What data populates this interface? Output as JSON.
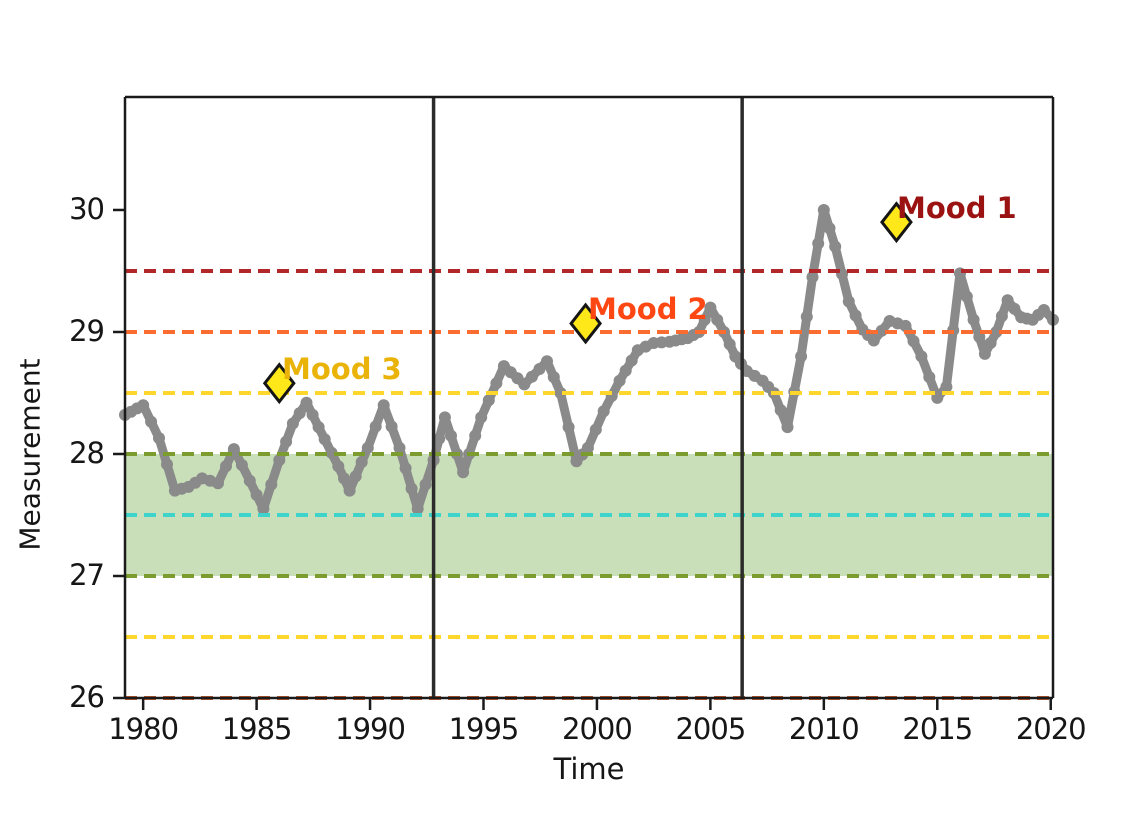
{
  "chart_data": {
    "type": "line",
    "title": "",
    "xlabel": "Time",
    "ylabel": "Measurement",
    "xlim": [
      1979.2,
      2020.1
    ],
    "ylim": [
      26,
      30.926
    ],
    "grid": false,
    "legend": null,
    "xticks": [
      1980,
      1985,
      1990,
      1995,
      2000,
      2005,
      2010,
      2015,
      2020
    ],
    "xtick_labels": [
      "1980",
      "1985",
      "1990",
      "1995",
      "2000",
      "2005",
      "2010",
      "2015",
      "2020"
    ],
    "yticks": [
      26,
      27,
      28,
      29,
      30
    ],
    "ytick_labels": [
      "26",
      "27",
      "28",
      "29",
      "30"
    ],
    "series": [
      {
        "name": "measurement",
        "color": "#8a8a8a",
        "marker": "o",
        "x": [
          1979.2,
          1980.0,
          1980.7,
          1981.4,
          1982.0,
          1982.6,
          1983.3,
          1984.0,
          1984.7,
          1985.3,
          1986.0,
          1986.6,
          1987.2,
          1988.0,
          1988.6,
          1989.1,
          1989.9,
          1990.6,
          1991.3,
          1992.1,
          1992.8,
          1993.3,
          1994.1,
          1994.9,
          1995.9,
          1996.8,
          1997.8,
          1998.4,
          1999.1,
          1999.6,
          2000.3,
          2001.0,
          2001.8,
          2002.5,
          2003.2,
          2004.0,
          2004.5,
          2005.0,
          2005.6,
          2006.1,
          2006.6,
          2007.3,
          2007.8,
          2008.4,
          2009.0,
          2009.5,
          2010.0,
          2010.5,
          2011.1,
          2011.7,
          2012.2,
          2012.9,
          2013.6,
          2014.3,
          2015.0,
          2015.4,
          2016.0,
          2016.6,
          2017.1,
          2017.6,
          2018.1,
          2018.7,
          2019.2,
          2019.7,
          2020.1
        ],
        "y": [
          28.32,
          28.4,
          28.13,
          27.7,
          27.73,
          27.8,
          27.76,
          28.04,
          27.78,
          27.55,
          27.95,
          28.25,
          28.42,
          28.12,
          27.9,
          27.7,
          28.05,
          28.4,
          28.05,
          27.55,
          27.95,
          28.3,
          27.85,
          28.3,
          28.72,
          28.57,
          28.76,
          28.5,
          27.94,
          28.05,
          28.35,
          28.6,
          28.85,
          28.91,
          28.92,
          28.95,
          29.0,
          29.2,
          29.0,
          28.8,
          28.68,
          28.6,
          28.5,
          28.22,
          28.8,
          29.45,
          30.0,
          29.7,
          29.25,
          29.02,
          28.93,
          29.09,
          29.05,
          28.8,
          28.46,
          28.55,
          29.48,
          29.1,
          28.82,
          29.0,
          29.26,
          29.12,
          29.1,
          29.18,
          29.1
        ]
      }
    ],
    "hlines": [
      {
        "y": 29.5,
        "color": "#b2272a"
      },
      {
        "y": 29.0,
        "color": "#fb6c30"
      },
      {
        "y": 28.5,
        "color": "#ffd62b"
      },
      {
        "y": 28.0,
        "color": "#7d9c30"
      },
      {
        "y": 27.5,
        "color": "#3ed4cc"
      },
      {
        "y": 27.0,
        "color": "#7d9c30"
      },
      {
        "y": 26.5,
        "color": "#ffd62b"
      },
      {
        "y": 26.0,
        "color": "#c05a30"
      }
    ],
    "band": {
      "y0": 27.0,
      "y1": 28.0,
      "color": "#c8dfb9"
    },
    "vlines": [
      {
        "x": 1992.8,
        "color": "#2b2b2b"
      },
      {
        "x": 2006.4,
        "color": "#2b2b2b"
      }
    ],
    "annotations": [
      {
        "label": "Mood 1",
        "x": 2013.2,
        "y": 29.9,
        "text_color": "#9b1212",
        "marker": "diamond",
        "marker_color": "#ffe81a"
      },
      {
        "label": "Mood 2",
        "x": 1999.5,
        "y": 29.07,
        "text_color": "#ff4713",
        "marker": "diamond",
        "marker_color": "#ffe81a"
      },
      {
        "label": "Mood 3",
        "x": 1986.0,
        "y": 28.58,
        "text_color": "#eab308",
        "marker": "diamond",
        "marker_color": "#ffe81a"
      }
    ]
  }
}
